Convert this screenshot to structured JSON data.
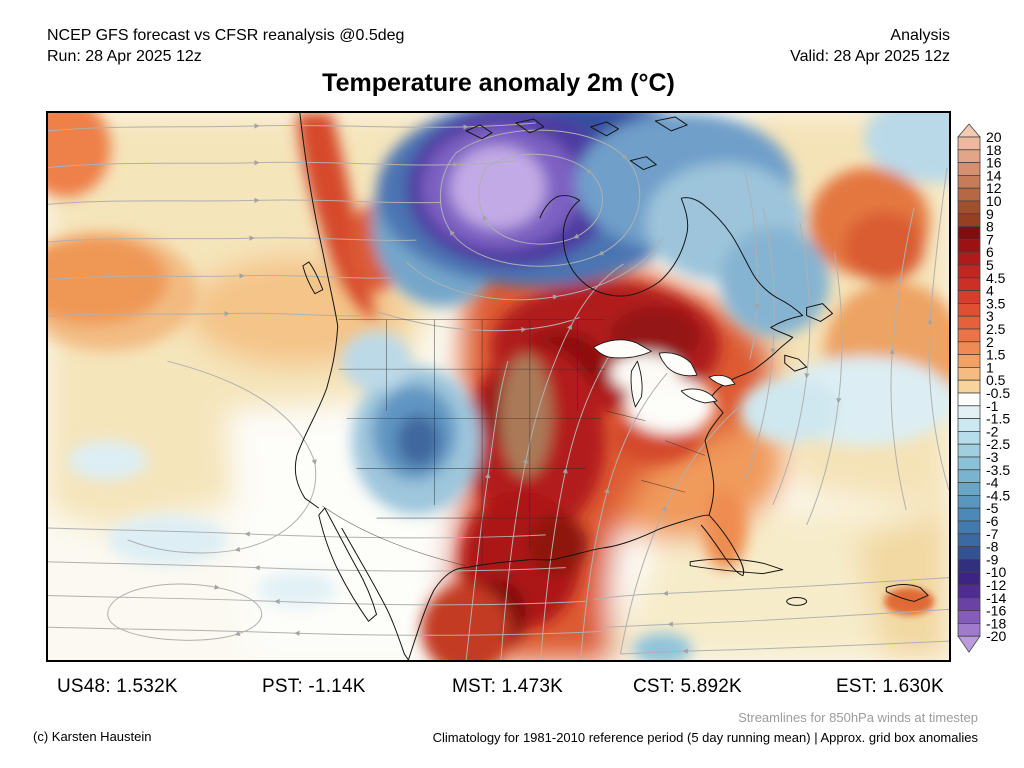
{
  "header": {
    "model_line": "NCEP GFS forecast vs CFSR reanalysis @0.5deg",
    "run_line": "Run: 28 Apr 2025 12z",
    "mode": "Analysis",
    "valid_line": "Valid: 28 Apr 2025 12z"
  },
  "title": "Temperature anomaly 2m (°C)",
  "stats": [
    "US48: 1.532K",
    "PST: -1.14K",
    "MST: 1.473K",
    "CST: 5.892K",
    "EST: 1.630K"
  ],
  "footer": {
    "credit": "(c) Karsten Haustein",
    "streamline_note": "Streamlines for 850hPa winds at timestep",
    "climatology_note": "Climatology for 1981-2010 reference period (5 day running mean) | Approx. grid box anomalies"
  },
  "chart_data": {
    "type": "heatmap",
    "title": "Temperature anomaly 2m (°C)",
    "units": "°C",
    "overlay": "850hPa wind streamlines",
    "legend": {
      "position": "right",
      "tick_labels": [
        "20",
        "18",
        "16",
        "14",
        "12",
        "10",
        "9",
        "8",
        "7",
        "6",
        "5",
        "4.5",
        "4",
        "3.5",
        "3",
        "2.5",
        "2",
        "1.5",
        "1",
        "0.5",
        "-0.5",
        "-1",
        "-1.5",
        "-2",
        "-2.5",
        "-3",
        "-3.5",
        "-4",
        "-4.5",
        "-5",
        "-6",
        "-7",
        "-8",
        "-9",
        "-10",
        "-12",
        "-14",
        "-16",
        "-18",
        "-20"
      ],
      "segment_colors": [
        "#f5cab2",
        "#edb89d",
        "#e2a588",
        "#d69070",
        "#c67c58",
        "#b56843",
        "#a1502c",
        "#973f21",
        "#7f0e10",
        "#9c1214",
        "#b01a1a",
        "#c22623",
        "#cd2f26",
        "#d83c2b",
        "#e14f33",
        "#e7603c",
        "#ec7347",
        "#f08a55",
        "#f3a266",
        "#f6bb80",
        "#f6d49c",
        "#fdfdfb",
        "#e2f1f6",
        "#cde8f0",
        "#b7dcea",
        "#a0cfe1",
        "#8bc1d8",
        "#79b3cf",
        "#68a5c7",
        "#5997bf",
        "#4d89b7",
        "#437aae",
        "#3b69a3",
        "#345293",
        "#31307e",
        "#3d2383",
        "#502b91",
        "#6a41a5",
        "#855cba",
        "#a07bcd",
        "#bb9ade",
        "#d7c2ee"
      ]
    },
    "regions": [
      {
        "area": "Northern Canada / Canadian Arctic",
        "anomaly_c": "-10 to -20"
      },
      {
        "area": "Hudson Bay to Baffin / Labrador",
        "anomaly_c": "-2 to -6"
      },
      {
        "area": "Quebec / Ontario / Great Lakes / Upper Midwest",
        "anomaly_c": "+6 to +10"
      },
      {
        "area": "Central Plains (Nebraska, Kansas, Iowa)",
        "anomaly_c": "+9 to +14"
      },
      {
        "area": "Texas / New Mexico / northern Mexico",
        "anomaly_c": "+6 to +9"
      },
      {
        "area": "Great Basin / interior Southwest US",
        "anomaly_c": "-2 to -5"
      },
      {
        "area": "British Columbia coast",
        "anomaly_c": "+3 to +6"
      },
      {
        "area": "Interior BC / Alberta",
        "anomaly_c": "-2 to -5"
      },
      {
        "area": "Northeast Pacific",
        "anomaly_c": "+1 to +3"
      },
      {
        "area": "Western Atlantic off Newfoundland",
        "anomaly_c": "+3 to +6"
      },
      {
        "area": "Subtropical Atlantic / Caribbean",
        "anomaly_c": "0 to +1"
      },
      {
        "area": "Southeast US / Florida",
        "anomaly_c": "+2 to +5"
      }
    ]
  }
}
